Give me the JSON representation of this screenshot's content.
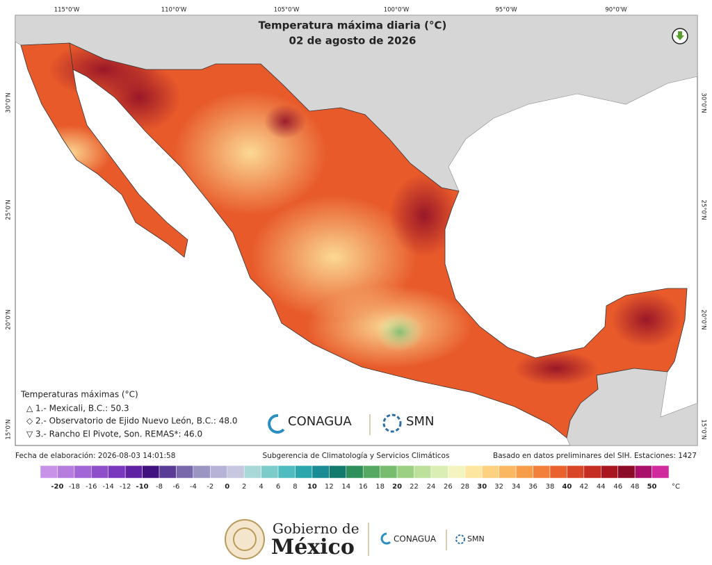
{
  "title": "Temperatura máxima diaria (°C)",
  "subtitle": "02 de agosto de 2026",
  "graticule": {
    "top": [
      "115°0'W",
      "110°0'W",
      "105°0'W",
      "100°0'W",
      "95°0'W",
      "90°0'W"
    ],
    "left": [
      "30°0'N",
      "25°0'N",
      "20°0'N",
      "15°0'N"
    ],
    "right": [
      "30°0'N",
      "25°0'N",
      "20°0'N",
      "15°0'N"
    ]
  },
  "extremes": {
    "heading": "Temperaturas máximas (°C)",
    "items": [
      "△ 1.- Mexicali, B.C.: 50.3",
      "◇ 2.- Observatorio de Ejido Nuevo León, B.C.: 48.0",
      "▽ 3.- Rancho El Pivote, Son. REMAS*: 46.0"
    ]
  },
  "logos": {
    "conagua": "CONAGUA",
    "smn": "SMN"
  },
  "footer": {
    "left": "Fecha de elaboración: 2026-08-03 14:01:58",
    "center": "Subgerencia de Climatología y Servicios Climáticos",
    "right": "Basado en datos preliminares del SIH. Estaciones: 1427"
  },
  "colorbar": {
    "ticks": [
      -20,
      -18,
      -16,
      -14,
      -12,
      -10,
      -8,
      -6,
      -4,
      -2,
      0,
      2,
      4,
      6,
      8,
      10,
      12,
      14,
      16,
      18,
      20,
      22,
      24,
      26,
      28,
      30,
      32,
      34,
      36,
      38,
      40,
      42,
      44,
      46,
      48,
      50
    ],
    "unit": "°C",
    "colors": [
      "#c792e8",
      "#b67ddf",
      "#a366d6",
      "#8f4fcb",
      "#7a38be",
      "#5f22a3",
      "#3f1280",
      "#5a3b96",
      "#7a68ad",
      "#9b95c4",
      "#b6b3d6",
      "#c7c7e0",
      "#a8d8d8",
      "#7dcccc",
      "#4fbdc0",
      "#2ba6ad",
      "#1a8c95",
      "#137a6e",
      "#2f8f5a",
      "#54a861",
      "#78bd6f",
      "#9bd083",
      "#bde09a",
      "#daedb2",
      "#f4f4c0",
      "#fde7a0",
      "#fdd180",
      "#fbb862",
      "#f79d4a",
      "#f2803a",
      "#e9622e",
      "#d94627",
      "#c52c22",
      "#a8161f",
      "#8c0b28",
      "#a8106a",
      "#d02a9e"
    ]
  },
  "bottom": {
    "gob_line1": "Gobierno de",
    "gob_line2": "México",
    "conagua": "CONAGUA",
    "smn": "SMN"
  }
}
